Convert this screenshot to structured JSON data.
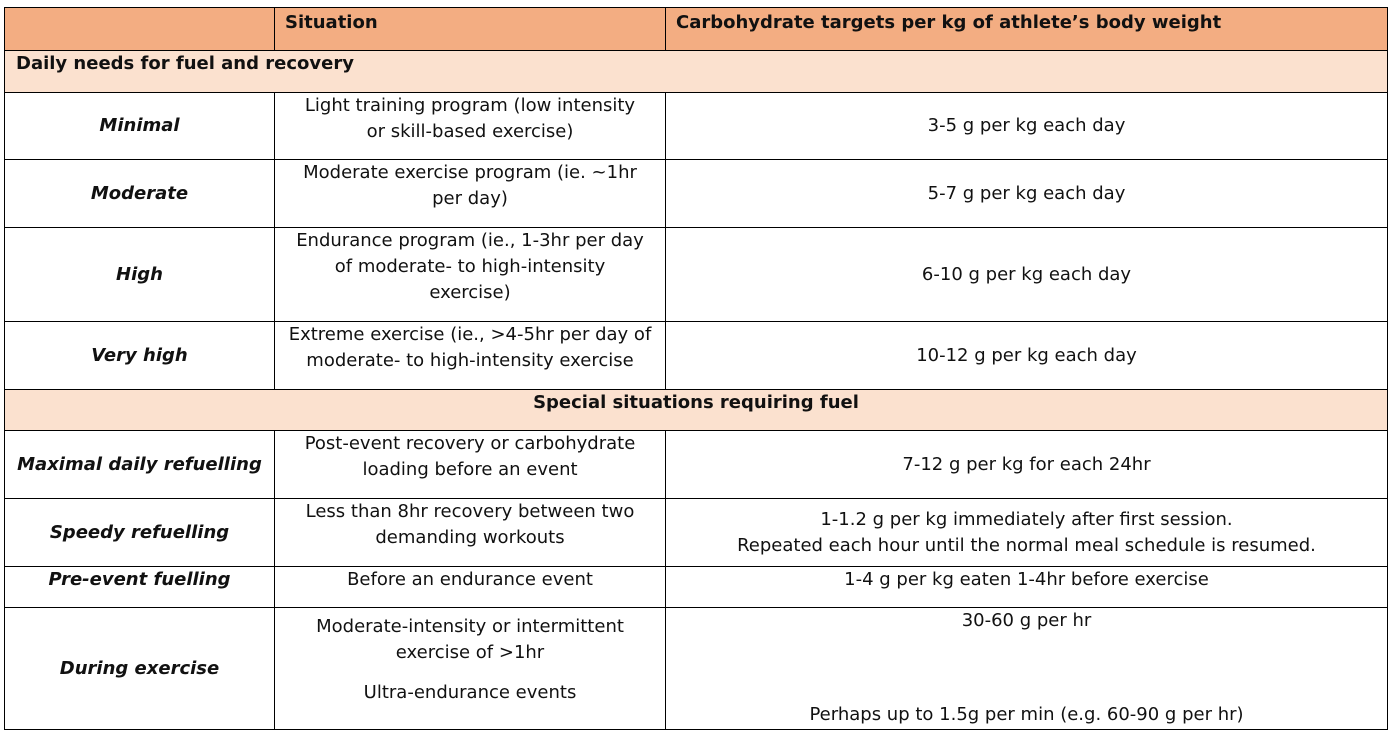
{
  "header": {
    "col1": "",
    "col2": "Situation",
    "col3": "Carbohydrate targets per kg of athlete’s body weight"
  },
  "section_daily": "Daily needs for fuel and recovery",
  "section_special": "Special situations requiring fuel",
  "rows": [
    {
      "label": "Minimal",
      "situation": [
        "Light training program (low intensity",
        "or skill-based exercise)"
      ],
      "target": [
        "3-5 g per kg each day"
      ]
    },
    {
      "label": "Moderate",
      "situation": [
        "Moderate exercise program (ie. ~1hr",
        "per day)"
      ],
      "target": [
        "5-7 g per kg each day"
      ]
    },
    {
      "label": "High",
      "situation": [
        "Endurance program (ie., 1-3hr per day",
        "of moderate- to high-intensity",
        "exercise)"
      ],
      "target": [
        "6-10 g per kg each day"
      ]
    },
    {
      "label": "Very high",
      "situation": [
        "Extreme exercise (ie., >4-5hr per day of",
        "moderate- to high-intensity exercise"
      ],
      "target": [
        "10-12 g per kg each day"
      ]
    },
    {
      "label": "Maximal daily refuelling",
      "situation": [
        "Post-event recovery or carbohydrate",
        "loading before an event"
      ],
      "target": [
        "7-12 g per kg for each 24hr"
      ]
    },
    {
      "label": "Speedy refuelling",
      "situation": [
        "Less than 8hr recovery between two",
        "demanding workouts"
      ],
      "target": [
        "1-1.2 g per kg immediately after first session.",
        "Repeated each hour until the normal meal schedule is resumed."
      ]
    },
    {
      "label": "Pre-event fuelling",
      "situation": [
        "Before an endurance event"
      ],
      "target": [
        "1-4 g per kg eaten 1-4hr before exercise"
      ]
    },
    {
      "label": "During exercise",
      "situation": [
        "Moderate-intensity or intermittent",
        "exercise of >1hr",
        "Ultra-endurance events"
      ],
      "target": [
        "30-60 g per hr",
        "Perhaps up to 1.5g per min (e.g. 60-90 g per hr)"
      ]
    }
  ]
}
